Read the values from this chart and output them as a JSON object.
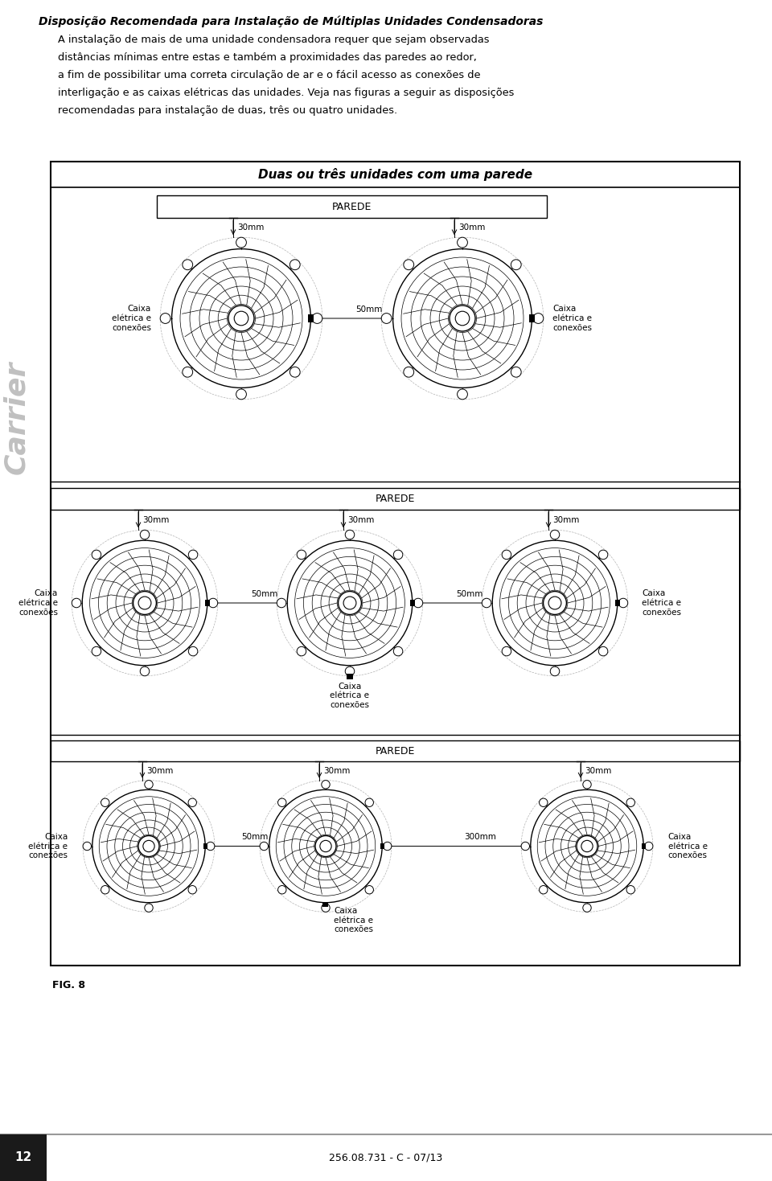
{
  "title_main": "Disposição Recomendada para Instalação de Múltiplas Unidades Condensadoras",
  "body_line1": "A instalação de mais de uma unidade condensadora requer que sejam observadas",
  "body_line2": "distâncias mínimas entre estas e também a proximidades das paredes ao redor,",
  "body_line3": "a fim de possibilitar uma correta circulação de ar e o fácil acesso as conexões de",
  "body_line4": "interligação e as caixas elétricas das unidades. Veja nas figuras a seguir as disposições",
  "body_line5": "recomendadas para instalação de duas, três ou quatro unidades.",
  "section_title": "Duas ou três unidades com uma parede",
  "parede_label": "PAREDE",
  "caixa_label": "Caixa\nelétrica e\nconexões",
  "footer_page": "12",
  "footer_center": "256.08.731 - C - 07/13",
  "fig_label": "FIG. 8",
  "carrier_text": "Carrier",
  "bg_color": "#ffffff"
}
